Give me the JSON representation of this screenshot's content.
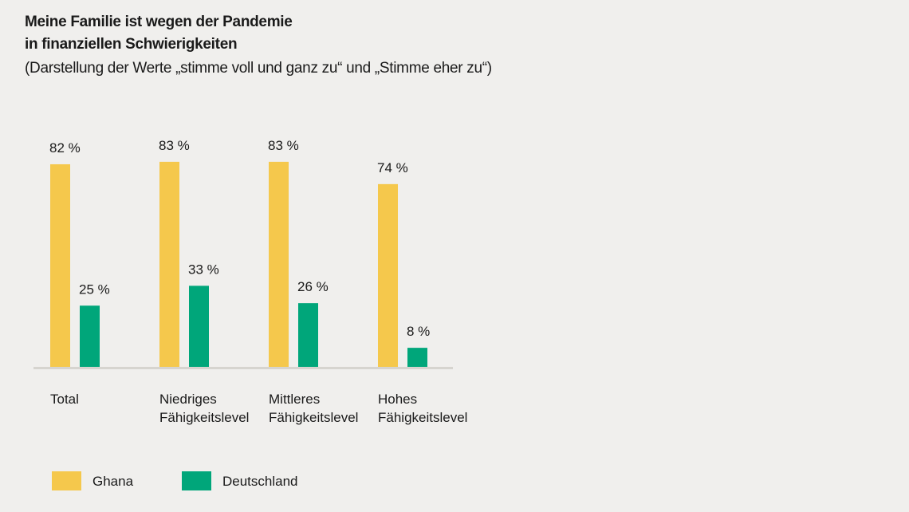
{
  "chart_data": {
    "type": "bar",
    "title": "Meine Familie ist wegen der Pandemie in finanziellen Schwierigkeiten",
    "title_lines": [
      "Meine Familie ist wegen der Pandemie",
      "in finanziellen Schwierigkeiten"
    ],
    "subtitle": "(Darstellung der Werte „stimme voll und ganz zu“ und „Stimme eher zu“)",
    "categories": [
      [
        "Total"
      ],
      [
        "Niedriges",
        "Fähigkeitslevel"
      ],
      [
        "Mittleres",
        "Fähigkeitslevel"
      ],
      [
        "Hohes",
        "Fähigkeitslevel"
      ]
    ],
    "series": [
      {
        "name": "Ghana",
        "color": "#f5c84c",
        "values": [
          82,
          83,
          83,
          74
        ],
        "labels": [
          "82 %",
          "83 %",
          "83 %",
          "74 %"
        ]
      },
      {
        "name": "Deutschland",
        "color": "#00a67a",
        "values": [
          25,
          33,
          26,
          8
        ],
        "labels": [
          "25 %",
          "33 %",
          "26 %",
          "8 %"
        ]
      }
    ],
    "unit": "%",
    "ylim": [
      0,
      100
    ],
    "grid": false,
    "legend_placement": "bottom-left",
    "axis_color": "#d6d4cf"
  }
}
